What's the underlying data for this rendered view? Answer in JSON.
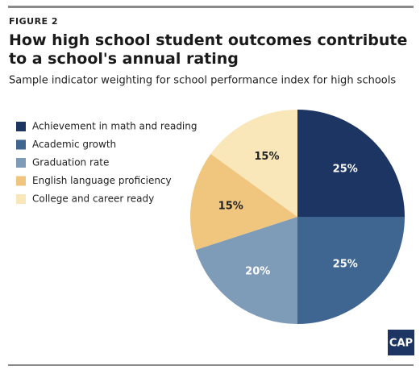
{
  "figure_label": "FIGURE 2",
  "logo": "CAP",
  "chart_data": {
    "type": "pie",
    "title": "How high school student outcomes contribute to a school's annual rating",
    "subtitle": "Sample indicator weighting for school performance index for high schools",
    "categories": [
      "Achievement in math and reading",
      "Academic growth",
      "Graduation rate",
      "English language proficiency",
      "College and career ready"
    ],
    "values": [
      25,
      25,
      20,
      15,
      15
    ],
    "value_labels": [
      "25%",
      "25%",
      "20%",
      "15%",
      "15%"
    ],
    "colors": [
      "#1d3562",
      "#3f6591",
      "#7e9bb8",
      "#f0c67f",
      "#f9e7b9"
    ],
    "label_colors": [
      "#ffffff",
      "#ffffff",
      "#ffffff",
      "#222222",
      "#222222"
    ],
    "legend": "left"
  }
}
